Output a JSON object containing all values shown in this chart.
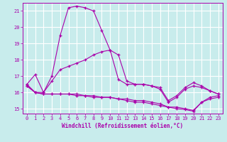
{
  "xlabel": "Windchill (Refroidissement éolien,°C)",
  "background_color": "#c8ecec",
  "grid_color": "#aadddd",
  "line_color": "#aa00aa",
  "ylim": [
    14.7,
    21.5
  ],
  "xlim": [
    -0.5,
    23.5
  ],
  "yticks": [
    15,
    16,
    17,
    18,
    19,
    20,
    21
  ],
  "xticks": [
    0,
    1,
    2,
    3,
    4,
    5,
    6,
    7,
    8,
    9,
    10,
    11,
    12,
    13,
    14,
    15,
    16,
    17,
    18,
    19,
    20,
    21,
    22,
    23
  ],
  "series1_x": [
    0,
    1,
    2,
    3,
    4,
    5,
    6,
    7,
    8,
    9,
    10,
    11,
    12,
    13,
    14,
    15,
    16,
    17,
    18,
    19,
    20,
    21,
    22,
    23
  ],
  "series1_y": [
    16.5,
    17.1,
    16.0,
    17.0,
    19.5,
    21.2,
    21.3,
    21.2,
    21.0,
    19.8,
    18.6,
    18.3,
    16.7,
    16.5,
    16.5,
    16.4,
    16.3,
    15.5,
    15.8,
    16.3,
    16.6,
    16.4,
    16.1,
    15.9
  ],
  "series2_x": [
    0,
    1,
    2,
    3,
    4,
    5,
    6,
    7,
    8,
    9,
    10,
    11,
    12,
    13,
    14,
    15,
    16,
    17,
    18,
    19,
    20,
    21,
    22,
    23
  ],
  "series2_y": [
    16.5,
    16.0,
    16.0,
    16.7,
    17.4,
    17.6,
    17.8,
    18.0,
    18.3,
    18.5,
    18.6,
    16.8,
    16.5,
    16.5,
    16.5,
    16.4,
    16.2,
    15.4,
    15.7,
    16.2,
    16.4,
    16.3,
    16.1,
    15.9
  ],
  "series3_x": [
    0,
    1,
    2,
    3,
    4,
    5,
    6,
    7,
    8,
    9,
    10,
    11,
    12,
    13,
    14,
    15,
    16,
    17,
    18,
    19,
    20,
    21,
    22,
    23
  ],
  "series3_y": [
    16.4,
    16.0,
    15.9,
    15.9,
    15.9,
    15.9,
    15.8,
    15.8,
    15.7,
    15.7,
    15.7,
    15.6,
    15.5,
    15.4,
    15.4,
    15.3,
    15.2,
    15.1,
    15.1,
    15.0,
    14.9,
    15.4,
    15.7,
    15.8
  ],
  "series4_x": [
    0,
    1,
    2,
    3,
    4,
    5,
    6,
    7,
    8,
    9,
    10,
    11,
    12,
    13,
    14,
    15,
    16,
    17,
    18,
    19,
    20,
    21,
    22,
    23
  ],
  "series4_y": [
    16.4,
    16.0,
    15.9,
    15.9,
    15.9,
    15.9,
    15.9,
    15.8,
    15.8,
    15.7,
    15.7,
    15.6,
    15.6,
    15.5,
    15.5,
    15.4,
    15.3,
    15.1,
    15.0,
    14.95,
    14.85,
    15.4,
    15.6,
    15.7
  ]
}
